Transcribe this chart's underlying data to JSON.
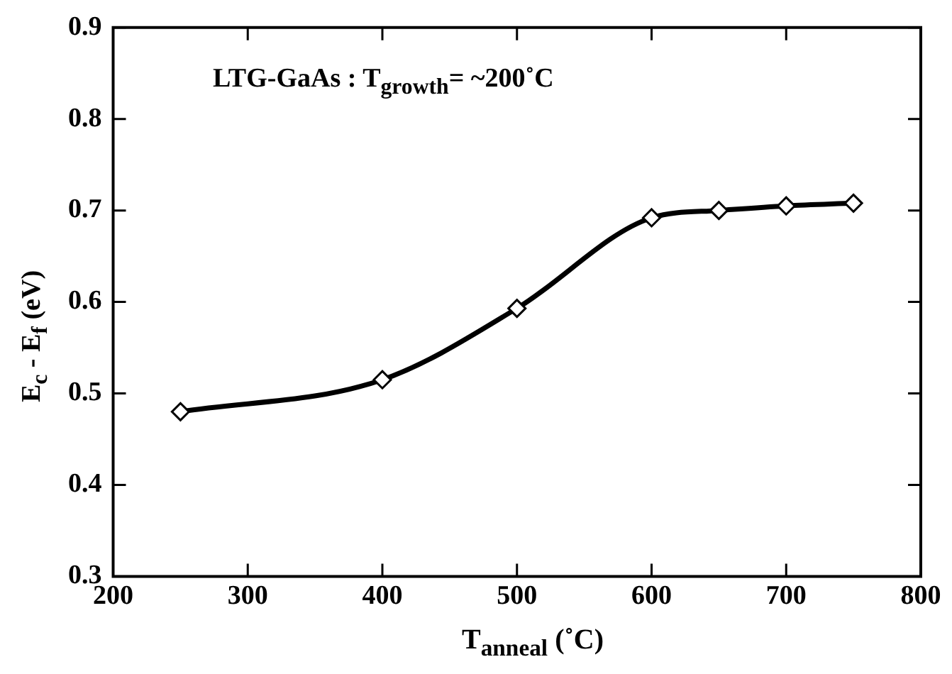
{
  "chart_data": {
    "type": "line",
    "xlabel": "T$_{anneal}$ (˚C)",
    "ylabel": "E$_{c}$ - E$_{f}$ (eV)",
    "annotations": [
      "LTG-GaAs : T$_{growth}$= ~200˚C"
    ],
    "x": [
      250,
      400,
      500,
      600,
      650,
      700,
      750
    ],
    "series": [
      {
        "color": "#000000",
        "values": [
          0.48,
          0.515,
          0.593,
          0.692,
          0.7,
          0.705,
          0.708
        ]
      }
    ],
    "xlim": [
      200,
      800
    ],
    "xticks": [
      200,
      300,
      400,
      500,
      600,
      700,
      800
    ],
    "ylim": [
      0.3,
      0.9
    ],
    "yticks": [
      0.3,
      0.4,
      0.5,
      0.6,
      0.7,
      0.8,
      0.9
    ],
    "grid": false,
    "legend": false,
    "marker": "diamond",
    "line_style": "solid"
  }
}
